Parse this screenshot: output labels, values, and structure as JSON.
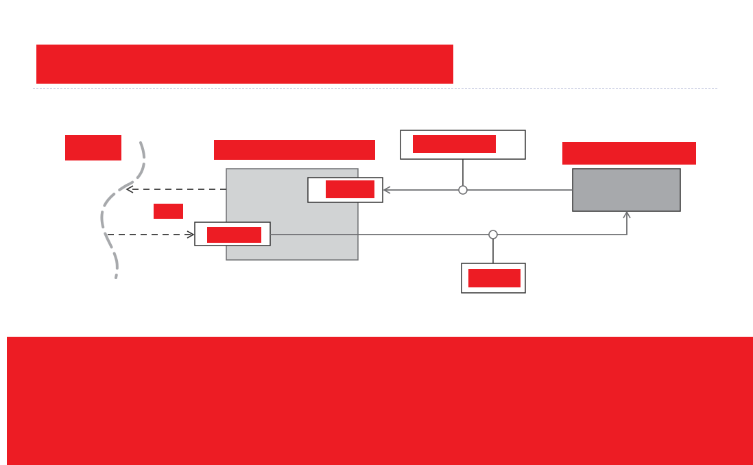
{
  "slide": {
    "title": "",
    "caption": ""
  },
  "diagram": {
    "labels": {
      "boundary": "",
      "component": "",
      "uses": "",
      "required_interface": "",
      "provided_interface": "",
      "interface_top": "",
      "interface_bottom": "",
      "other_component": ""
    }
  },
  "colors": {
    "redaction": "#ed1c24",
    "component_fill": "#d1d3d4",
    "other_component_fill": "#a7a9ac",
    "connector": "#6d6e71",
    "boundary": "#a7a9ac",
    "rule": "#b3b8d6"
  },
  "icons": {
    "ball_joint": "lollipop-icon",
    "arrow": "arrow-head-icon"
  }
}
